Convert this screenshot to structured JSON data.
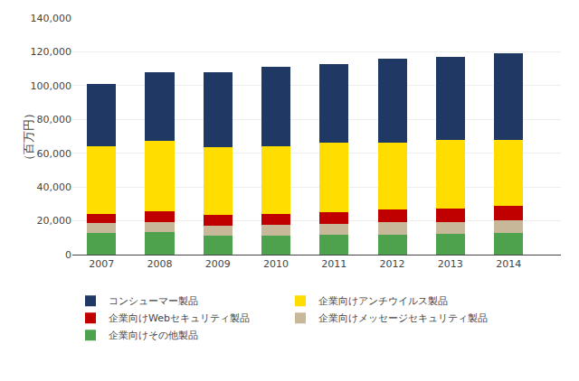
{
  "chart_data": {
    "type": "bar",
    "stacked": true,
    "ylabel": "（百万円）",
    "x": [
      2007,
      2008,
      2009,
      2010,
      2011,
      2012,
      2013,
      2014
    ],
    "xlim": [
      2006.5,
      2014.9
    ],
    "xticks": [
      2007,
      2008,
      2009,
      2010,
      2011,
      2012,
      2013,
      2014
    ],
    "ylim": [
      0,
      140000
    ],
    "yticks": [
      0,
      {
        "value": 20000,
        "label": "20,000"
      },
      {
        "value": 40000,
        "label": "40,000"
      },
      {
        "value": 60000,
        "label": "60,000"
      },
      {
        "value": 80000,
        "label": "80,000"
      },
      {
        "value": 100000,
        "label": "100,000"
      },
      {
        "value": 120000,
        "label": "120,000"
      },
      {
        "value": 140000,
        "label": "140,000"
      }
    ],
    "grid": true,
    "legend": "bottom",
    "series": [
      {
        "name": "企業向けその他製品",
        "color": "#4EA24E",
        "values": [
          13000,
          13500,
          11000,
          11000,
          11500,
          12000,
          12500,
          13000
        ]
      },
      {
        "name": "企業向けメッセージセキュリティ製品",
        "color": "#C8B89A",
        "values": [
          5500,
          6000,
          6000,
          6500,
          6500,
          7000,
          7000,
          7500
        ]
      },
      {
        "name": "企業向けWebセキュリティ製品",
        "color": "#C00000",
        "values": [
          5500,
          6000,
          6500,
          6500,
          7000,
          7500,
          8000,
          8500
        ]
      },
      {
        "name": "企業向けアンチウイルス製品",
        "color": "#FFDD00",
        "values": [
          40000,
          42000,
          40000,
          40000,
          41000,
          40000,
          40500,
          39000
        ]
      },
      {
        "name": "コンシューマー製品",
        "color": "#1F3864",
        "values": [
          37000,
          40500,
          44500,
          47000,
          47000,
          49500,
          49000,
          51000
        ]
      }
    ]
  }
}
